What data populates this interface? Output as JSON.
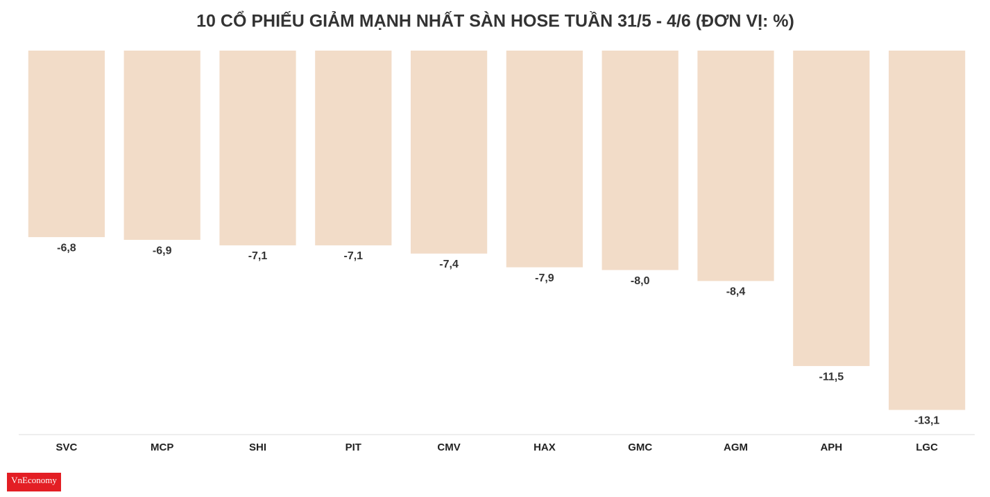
{
  "chart_data": {
    "type": "bar",
    "title": "10 CỔ PHIẾU GIẢM MẠNH NHẤT SÀN HOSE TUẦN 31/5 - 4/6 (ĐƠN VỊ: %)",
    "categories": [
      "SVC",
      "MCP",
      "SHI",
      "PIT",
      "CMV",
      "HAX",
      "GMC",
      "AGM",
      "APH",
      "LGC"
    ],
    "values": [
      -6.8,
      -6.9,
      -7.1,
      -7.1,
      -7.4,
      -7.9,
      -8.0,
      -8.4,
      -11.5,
      -13.1
    ],
    "value_labels": [
      "-6,8",
      "-6,9",
      "-7,1",
      "-7,1",
      "-7,4",
      "-7,9",
      "-8,0",
      "-8,4",
      "-11,5",
      "-13,1"
    ],
    "color": "#f2dcc8",
    "ylim": [
      -14,
      0
    ],
    "grid": false
  },
  "logo": "VnEconomy"
}
